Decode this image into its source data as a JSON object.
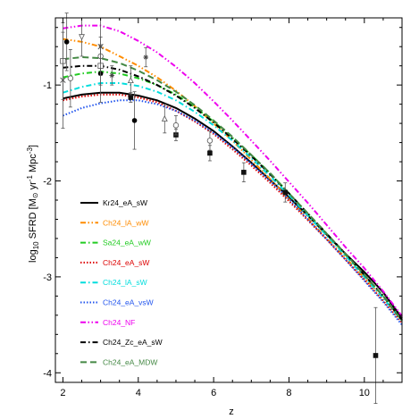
{
  "chart_data": {
    "type": "line",
    "title": "",
    "xlabel": "z",
    "ylabel": "log10 SFRD [M⊙ yr⁻¹ Mpc⁻³]",
    "ylabel_parts": {
      "log": "log",
      "sub": "10",
      "rest": " SFRD [M",
      "sun": "⊙",
      "yr": " yr",
      "yr_exp": "-1",
      "mpc": " Mpc",
      "mpc_exp": "-3",
      "close": "]"
    },
    "xlim": [
      1.8,
      11.0
    ],
    "ylim": [
      -4.1,
      -0.3
    ],
    "xticks": [
      2,
      4,
      6,
      8,
      10
    ],
    "yticks": [
      -4,
      -3,
      -2,
      -1
    ],
    "grid": false,
    "legend_position": "left",
    "series": [
      {
        "name": "Kr24_eA_sW",
        "color": "#000000",
        "dash": "solid",
        "x": [
          2,
          2.5,
          3,
          3.5,
          4,
          4.5,
          5,
          5.5,
          6,
          6.5,
          7,
          7.5,
          8,
          8.5,
          9,
          9.5,
          10,
          10.5,
          11
        ],
        "y": [
          -1.14,
          -1.1,
          -1.08,
          -1.08,
          -1.11,
          -1.16,
          -1.24,
          -1.35,
          -1.48,
          -1.64,
          -1.81,
          -1.99,
          -2.17,
          -2.36,
          -2.56,
          -2.76,
          -2.95,
          -3.16,
          -3.43
        ]
      },
      {
        "name": "Ch24_lA_wW",
        "color": "#ff8c00",
        "dash": "dashdotdot",
        "x": [
          2,
          2.5,
          3,
          3.5,
          4,
          4.5,
          5,
          5.5,
          6,
          6.5,
          7,
          7.5,
          8,
          8.5,
          9,
          9.5,
          10,
          10.5,
          11
        ],
        "y": [
          -0.52,
          -0.55,
          -0.6,
          -0.7,
          -0.8,
          -0.92,
          -1.06,
          -1.22,
          -1.4,
          -1.58,
          -1.78,
          -1.98,
          -2.19,
          -2.39,
          -2.6,
          -2.8,
          -3.01,
          -3.22,
          -3.45
        ]
      },
      {
        "name": "Sa24_eA_wW",
        "color": "#22cc22",
        "dash": "dashdot",
        "x": [
          2,
          2.5,
          3,
          3.5,
          4,
          4.5,
          5,
          5.5,
          6,
          6.5,
          7,
          7.5,
          8,
          8.5,
          9,
          9.5,
          10,
          10.5,
          11
        ],
        "y": [
          -0.92,
          -0.88,
          -0.86,
          -0.88,
          -0.93,
          -1.0,
          -1.1,
          -1.23,
          -1.38,
          -1.55,
          -1.73,
          -1.92,
          -2.13,
          -2.34,
          -2.55,
          -2.77,
          -2.98,
          -3.2,
          -3.45
        ]
      },
      {
        "name": "Ch24_eA_sW",
        "color": "#dd0000",
        "dash": "dotted",
        "x": [
          2,
          2.5,
          3,
          3.5,
          4,
          4.5,
          5,
          5.5,
          6,
          6.5,
          7,
          7.5,
          8,
          8.5,
          9,
          9.5,
          10,
          10.5,
          11
        ],
        "y": [
          -1.16,
          -1.12,
          -1.1,
          -1.1,
          -1.13,
          -1.18,
          -1.27,
          -1.38,
          -1.51,
          -1.67,
          -1.84,
          -2.02,
          -2.21,
          -2.41,
          -2.61,
          -2.82,
          -3.03,
          -3.25,
          -3.48
        ]
      },
      {
        "name": "Ch24_lA_sW",
        "color": "#00dddd",
        "dash": "dashdot",
        "x": [
          2,
          2.5,
          3,
          3.5,
          4,
          4.5,
          5,
          5.5,
          6,
          6.5,
          7,
          7.5,
          8,
          8.5,
          9,
          9.5,
          10,
          10.5,
          11
        ],
        "y": [
          -1.08,
          -1.02,
          -0.98,
          -0.98,
          -1.01,
          -1.07,
          -1.16,
          -1.28,
          -1.42,
          -1.58,
          -1.76,
          -1.95,
          -2.15,
          -2.36,
          -2.57,
          -2.78,
          -3.0,
          -3.22,
          -3.46
        ]
      },
      {
        "name": "Ch24_eA_vsW",
        "color": "#2255ee",
        "dash": "dotted",
        "x": [
          2,
          2.5,
          3,
          3.5,
          4,
          4.5,
          5,
          5.5,
          6,
          6.5,
          7,
          7.5,
          8,
          8.5,
          9,
          9.5,
          10,
          10.5,
          11
        ],
        "y": [
          -1.32,
          -1.24,
          -1.19,
          -1.16,
          -1.16,
          -1.2,
          -1.27,
          -1.37,
          -1.5,
          -1.65,
          -1.82,
          -2.0,
          -2.19,
          -2.4,
          -2.61,
          -2.82,
          -3.04,
          -3.26,
          -3.5
        ]
      },
      {
        "name": "Ch24_NF",
        "color": "#ee00ee",
        "dash": "dashdotdot",
        "x": [
          2,
          2.5,
          3,
          3.5,
          4,
          4.5,
          5,
          5.5,
          6,
          6.5,
          7,
          7.5,
          8,
          8.5,
          9,
          9.5,
          10,
          10.5,
          11
        ],
        "y": [
          -0.41,
          -0.38,
          -0.38,
          -0.44,
          -0.54,
          -0.66,
          -0.81,
          -0.98,
          -1.17,
          -1.37,
          -1.58,
          -1.79,
          -2.01,
          -2.23,
          -2.46,
          -2.69,
          -2.91,
          -3.15,
          -3.41
        ]
      },
      {
        "name": "Ch24_Zc_eA_sW",
        "color": "#000000",
        "dash": "dashdot",
        "x": [
          2,
          2.5,
          3,
          3.5,
          4,
          4.5,
          5,
          5.5,
          6,
          6.5,
          7,
          7.5,
          8,
          8.5,
          9,
          9.5,
          10,
          10.5,
          11
        ],
        "y": [
          -0.82,
          -0.8,
          -0.8,
          -0.84,
          -0.91,
          -1.0,
          -1.11,
          -1.24,
          -1.39,
          -1.56,
          -1.74,
          -1.93,
          -2.13,
          -2.34,
          -2.55,
          -2.76,
          -2.98,
          -3.2,
          -3.45
        ]
      },
      {
        "name": "Ch24_eA_MDW",
        "color": "#448844",
        "dash": "dashed",
        "x": [
          2,
          2.5,
          3,
          3.5,
          4,
          4.5,
          5,
          5.5,
          6,
          6.5,
          7,
          7.5,
          8,
          8.5,
          9,
          9.5,
          10,
          10.5,
          11
        ],
        "y": [
          -0.73,
          -0.71,
          -0.72,
          -0.77,
          -0.85,
          -0.95,
          -1.07,
          -1.21,
          -1.37,
          -1.54,
          -1.73,
          -1.92,
          -2.13,
          -2.34,
          -2.55,
          -2.76,
          -2.98,
          -3.2,
          -3.46
        ]
      }
    ],
    "observations": [
      {
        "marker": "filled-circle",
        "x": 2.1,
        "y": -0.55,
        "err": [
          0.3,
          0.3
        ]
      },
      {
        "marker": "filled-circle",
        "x": 3.0,
        "y": -0.88,
        "err": [
          0.3,
          0.3
        ]
      },
      {
        "marker": "filled-circle",
        "x": 3.9,
        "y": -1.37,
        "err": [
          0.3,
          0.3
        ]
      },
      {
        "marker": "filled-square",
        "x": 3.8,
        "y": -1.13,
        "err": [
          0.05,
          0.05
        ]
      },
      {
        "marker": "filled-square",
        "x": 5.0,
        "y": -1.52,
        "err": [
          0.06,
          0.06
        ]
      },
      {
        "marker": "filled-square",
        "x": 5.9,
        "y": -1.71,
        "err": [
          0.08,
          0.08
        ]
      },
      {
        "marker": "filled-square",
        "x": 6.8,
        "y": -1.91,
        "err": [
          0.1,
          0.1
        ]
      },
      {
        "marker": "filled-square",
        "x": 7.9,
        "y": -2.12,
        "err": [
          0.1,
          0.1
        ]
      },
      {
        "marker": "filled-square",
        "x": 10.3,
        "y": -3.82,
        "err": [
          0.5,
          0.5
        ]
      },
      {
        "marker": "open-circle",
        "x": 2.2,
        "y": -0.93,
        "err": [
          0.3,
          0.3
        ]
      },
      {
        "marker": "open-circle",
        "x": 3.0,
        "y": -0.7,
        "err": [
          0.2,
          0.2
        ]
      },
      {
        "marker": "open-circle",
        "x": 5.0,
        "y": -1.42,
        "err": [
          0.1,
          0.1
        ]
      },
      {
        "marker": "open-circle",
        "x": 5.9,
        "y": -1.58,
        "err": [
          0.1,
          0.1
        ]
      },
      {
        "marker": "open-square",
        "x": 2.0,
        "y": -0.75,
        "err": [
          0.4,
          0.4
        ]
      },
      {
        "marker": "open-square",
        "x": 3.0,
        "y": -0.8,
        "err": [
          0.2,
          0.2
        ]
      },
      {
        "marker": "open-triangle",
        "x": 4.7,
        "y": -1.35,
        "err": [
          0.15,
          0.15
        ]
      },
      {
        "marker": "open-triangle",
        "x": 3.8,
        "y": -0.95,
        "err": [
          0.15,
          0.15
        ]
      },
      {
        "marker": "open-triangle-down",
        "x": 2.5,
        "y": -0.5,
        "err": [
          0.2,
          0.2
        ]
      },
      {
        "marker": "star",
        "x": 4.2,
        "y": -0.71,
        "err": [
          0.1,
          0.1
        ]
      },
      {
        "marker": "star",
        "x": 3.3,
        "y": -0.9,
        "err": [
          0.1,
          0.1
        ]
      },
      {
        "marker": "cross",
        "x": 2.0,
        "y": -0.95,
        "err": [
          0.5,
          0.5
        ]
      },
      {
        "marker": "cross",
        "x": 3.0,
        "y": -0.6,
        "err": [
          0.3,
          0.3
        ]
      }
    ]
  }
}
